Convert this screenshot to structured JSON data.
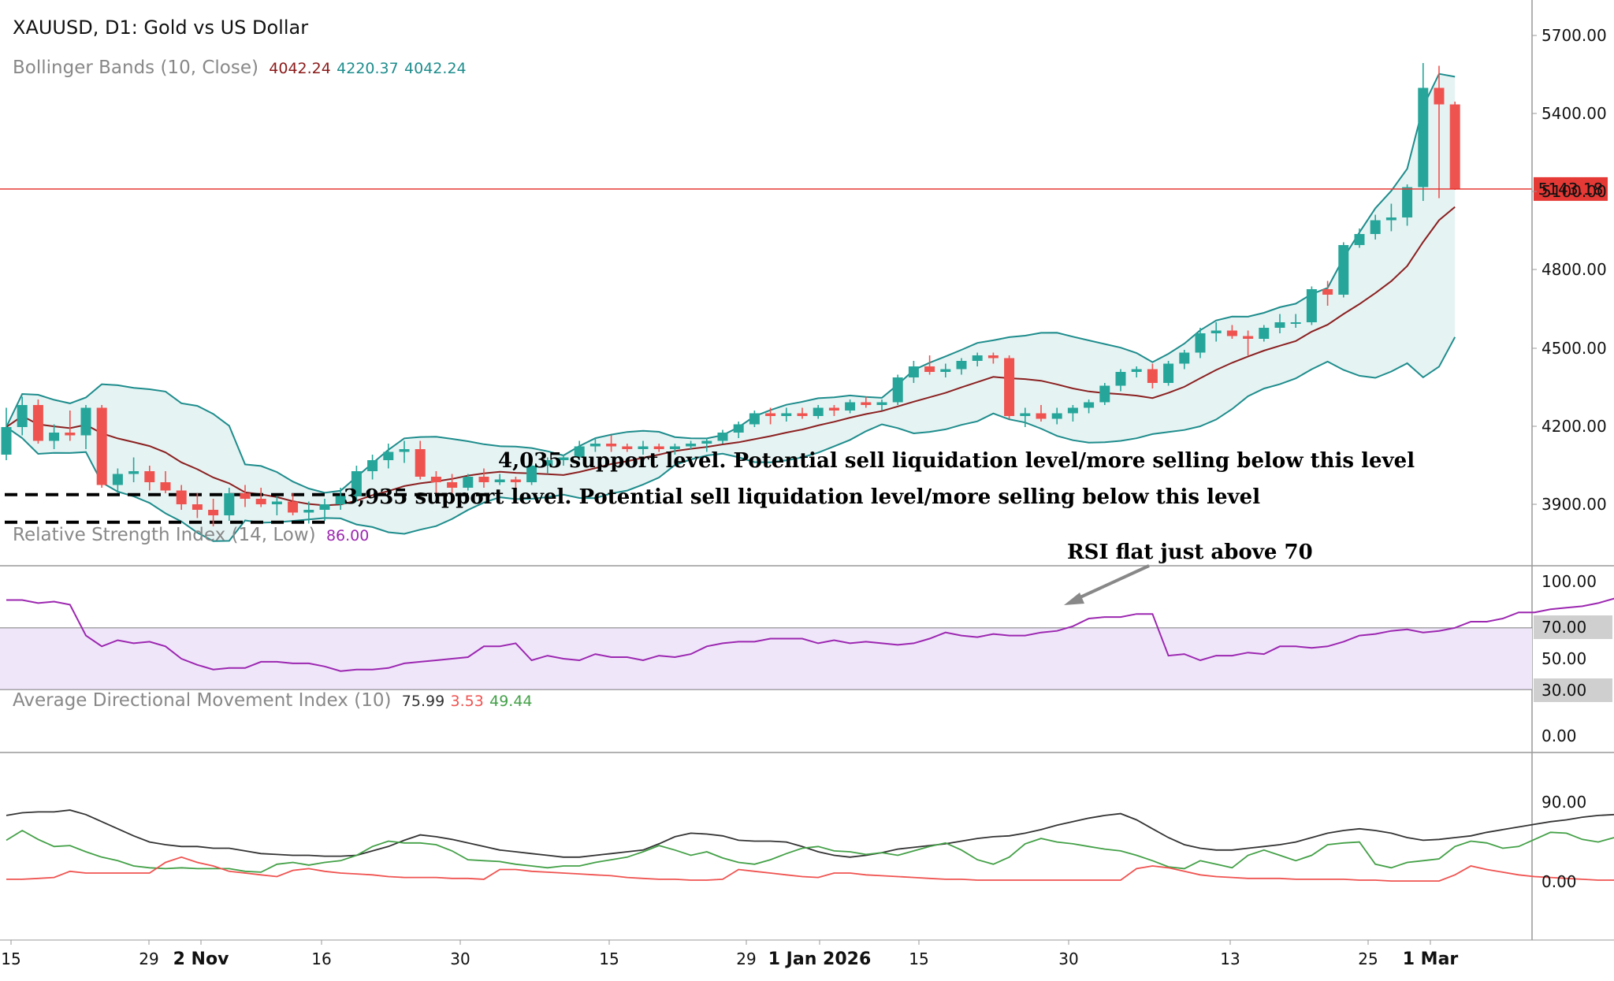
{
  "main_title": "XAUUSD, D1: Gold vs US Dollar",
  "bb": {
    "name": "Bollinger Bands (10, Close)",
    "v1": "4042.24",
    "v2": "4220.37",
    "v3": "4042.24"
  },
  "rsi": {
    "name": "Relative Strength Index (14, Low)",
    "value": "86.00"
  },
  "adx": {
    "name": "Average Directional Movement Index (10)",
    "v1": "75.99",
    "v2": "3.53",
    "v3": "49.44"
  },
  "annotations": {
    "support1": "4,035 support level. Potential sell liquidation level/more selling below this level",
    "support2": "3,935 support level. Potential sell liquidation level/more selling below this level",
    "rsi_note": "RSI flat just above 70"
  },
  "colors": {
    "up": "#26a69a",
    "down": "#ef5350",
    "bb_band": "#1e8c8c",
    "bb_fill": "#e6f3f3",
    "bb_mid": "#8b2020",
    "price_line": "#e53935",
    "rsi": "#9c27b0",
    "rsi_zone": "#efe6fa",
    "adx": "#333333",
    "di_plus": "#43a047",
    "di_minus": "#ef5350"
  },
  "chart_data": [
    {
      "type": "candlestick",
      "title": "XAUUSD, D1: Gold vs US Dollar",
      "y_ticks": [
        "5700.00",
        "5400.00",
        "5100.00",
        "4800.00",
        "4500.00",
        "4200.00",
        "3900.00"
      ],
      "ylim": [
        3840,
        5760
      ],
      "current_price": "5143.18",
      "support_levels": [
        4035,
        3935
      ],
      "x_ticks": [
        "15",
        "29",
        "2 Nov",
        "16",
        "30",
        "15",
        "29",
        "1 Jan 2026",
        "15",
        "30",
        "13",
        "25",
        "1 Mar"
      ],
      "candles": [
        [
          4180,
          4350,
          4160,
          4280
        ],
        [
          4280,
          4390,
          4250,
          4360
        ],
        [
          4360,
          4380,
          4220,
          4230
        ],
        [
          4230,
          4290,
          4200,
          4260
        ],
        [
          4260,
          4340,
          4230,
          4250
        ],
        [
          4250,
          4360,
          4200,
          4350
        ],
        [
          4350,
          4360,
          4060,
          4070
        ],
        [
          4070,
          4130,
          4040,
          4110
        ],
        [
          4110,
          4170,
          4080,
          4120
        ],
        [
          4120,
          4140,
          4050,
          4080
        ],
        [
          4080,
          4120,
          4040,
          4050
        ],
        [
          4050,
          4070,
          3980,
          4000
        ],
        [
          4000,
          4040,
          3950,
          3980
        ],
        [
          3980,
          4020,
          3920,
          3960
        ],
        [
          3960,
          4060,
          3940,
          4040
        ],
        [
          4040,
          4070,
          3990,
          4020
        ],
        [
          4020,
          4060,
          3990,
          4000
        ],
        [
          4000,
          4030,
          3960,
          4010
        ],
        [
          4010,
          4040,
          3960,
          3970
        ],
        [
          3970,
          4010,
          3930,
          3980
        ],
        [
          3980,
          4020,
          3940,
          4000
        ],
        [
          4000,
          4060,
          3980,
          4030
        ],
        [
          4030,
          4140,
          4010,
          4120
        ],
        [
          4120,
          4180,
          4090,
          4160
        ],
        [
          4160,
          4220,
          4130,
          4190
        ],
        [
          4190,
          4230,
          4150,
          4200
        ],
        [
          4200,
          4230,
          4090,
          4100
        ],
        [
          4100,
          4120,
          4040,
          4080
        ],
        [
          4080,
          4110,
          4030,
          4060
        ],
        [
          4060,
          4110,
          4050,
          4100
        ],
        [
          4100,
          4130,
          4060,
          4080
        ],
        [
          4080,
          4110,
          4070,
          4090
        ],
        [
          4090,
          4100,
          4050,
          4080
        ],
        [
          4080,
          4160,
          4070,
          4140
        ],
        [
          4140,
          4170,
          4110,
          4160
        ],
        [
          4160,
          4180,
          4140,
          4170
        ],
        [
          4170,
          4230,
          4160,
          4210
        ],
        [
          4210,
          4240,
          4190,
          4220
        ],
        [
          4220,
          4250,
          4190,
          4210
        ],
        [
          4210,
          4220,
          4190,
          4200
        ],
        [
          4200,
          4230,
          4180,
          4210
        ],
        [
          4210,
          4220,
          4190,
          4200
        ],
        [
          4200,
          4220,
          4180,
          4210
        ],
        [
          4210,
          4230,
          4200,
          4220
        ],
        [
          4220,
          4240,
          4190,
          4230
        ],
        [
          4230,
          4270,
          4220,
          4260
        ],
        [
          4260,
          4300,
          4240,
          4290
        ],
        [
          4290,
          4340,
          4280,
          4330
        ],
        [
          4330,
          4350,
          4290,
          4320
        ],
        [
          4320,
          4350,
          4300,
          4330
        ],
        [
          4330,
          4350,
          4310,
          4320
        ],
        [
          4320,
          4360,
          4310,
          4350
        ],
        [
          4350,
          4360,
          4320,
          4340
        ],
        [
          4340,
          4380,
          4330,
          4370
        ],
        [
          4370,
          4390,
          4350,
          4360
        ],
        [
          4360,
          4380,
          4340,
          4370
        ],
        [
          4370,
          4470,
          4360,
          4460
        ],
        [
          4460,
          4520,
          4440,
          4500
        ],
        [
          4500,
          4540,
          4470,
          4480
        ],
        [
          4480,
          4510,
          4460,
          4490
        ],
        [
          4490,
          4530,
          4470,
          4520
        ],
        [
          4520,
          4550,
          4500,
          4540
        ],
        [
          4540,
          4550,
          4510,
          4530
        ],
        [
          4530,
          4540,
          4310,
          4320
        ],
        [
          4320,
          4350,
          4280,
          4330
        ],
        [
          4330,
          4360,
          4300,
          4310
        ],
        [
          4310,
          4350,
          4290,
          4330
        ],
        [
          4330,
          4360,
          4300,
          4350
        ],
        [
          4350,
          4380,
          4330,
          4370
        ],
        [
          4370,
          4440,
          4360,
          4430
        ],
        [
          4430,
          4490,
          4410,
          4480
        ],
        [
          4480,
          4500,
          4460,
          4490
        ],
        [
          4490,
          4510,
          4420,
          4440
        ],
        [
          4440,
          4520,
          4430,
          4510
        ],
        [
          4510,
          4560,
          4490,
          4550
        ],
        [
          4550,
          4640,
          4530,
          4620
        ],
        [
          4620,
          4660,
          4590,
          4630
        ],
        [
          4630,
          4650,
          4600,
          4610
        ],
        [
          4610,
          4630,
          4540,
          4600
        ],
        [
          4600,
          4650,
          4590,
          4640
        ],
        [
          4640,
          4690,
          4620,
          4660
        ],
        [
          4660,
          4690,
          4640,
          4660
        ],
        [
          4660,
          4790,
          4650,
          4780
        ],
        [
          4780,
          4810,
          4720,
          4760
        ],
        [
          4760,
          4950,
          4750,
          4940
        ],
        [
          4940,
          5000,
          4930,
          4980
        ],
        [
          4980,
          5050,
          4960,
          5030
        ],
        [
          5030,
          5090,
          4990,
          5040
        ],
        [
          5040,
          5160,
          5010,
          5150
        ],
        [
          5150,
          5600,
          5100,
          5510
        ],
        [
          5510,
          5590,
          5110,
          5450
        ],
        [
          5450,
          5460,
          5140,
          5143
        ]
      ]
    },
    {
      "type": "line",
      "title": "Relative Strength Index (14, Low)",
      "y_ticks": [
        "100.00",
        "70.00",
        "50.00",
        "30.00",
        "0.00"
      ],
      "ylim": [
        0,
        100
      ],
      "bands": [
        30,
        70
      ],
      "values": [
        88,
        88,
        86,
        87,
        85,
        65,
        58,
        62,
        60,
        61,
        58,
        50,
        46,
        43,
        44,
        44,
        48,
        48,
        47,
        47,
        45,
        42,
        43,
        43,
        44,
        47,
        48,
        49,
        50,
        51,
        58,
        58,
        60,
        49,
        52,
        50,
        49,
        53,
        51,
        51,
        49,
        52,
        51,
        53,
        58,
        60,
        61,
        61,
        63,
        63,
        63,
        60,
        62,
        60,
        61,
        60,
        59,
        60,
        63,
        67,
        65,
        64,
        66,
        65,
        65,
        67,
        68,
        71,
        76,
        77,
        77,
        79,
        79,
        52,
        53,
        49,
        52,
        52,
        54,
        53,
        58,
        58,
        57,
        58,
        61,
        65,
        66,
        68,
        69,
        67,
        68,
        70,
        74,
        74,
        76,
        80,
        80,
        82,
        83,
        84,
        86,
        89,
        90,
        90,
        92,
        89,
        86,
        86
      ]
    },
    {
      "type": "line",
      "title": "Average Directional Movement Index (10)",
      "y_ticks": [
        "90.00",
        "0.00"
      ],
      "ylim": [
        -20,
        110
      ],
      "series": [
        {
          "values": [
            75,
            78,
            79,
            79,
            81,
            76,
            68,
            60,
            52,
            45,
            42,
            40,
            40,
            38,
            38,
            35,
            32,
            31,
            30,
            30,
            29,
            29,
            30,
            35,
            40,
            47,
            53,
            51,
            48,
            44,
            40,
            36,
            34,
            32,
            30,
            28,
            28,
            30,
            32,
            34,
            36,
            43,
            51,
            55,
            54,
            52,
            47,
            46,
            46,
            45,
            40,
            34,
            30,
            28,
            30,
            33,
            37,
            39,
            41,
            43,
            46,
            49,
            51,
            52,
            55,
            59,
            64,
            68,
            72,
            75,
            77,
            70,
            60,
            50,
            42,
            38,
            36,
            36,
            38,
            40,
            42,
            45,
            50,
            55,
            58,
            60,
            58,
            55,
            50,
            47,
            48,
            50,
            52,
            56,
            59,
            62,
            65,
            68,
            70,
            73,
            75,
            76,
            75,
            76,
            76
          ]
        },
        {
          "values": [
            47,
            58,
            48,
            40,
            41,
            34,
            28,
            24,
            18,
            16,
            15,
            16,
            15,
            15,
            15,
            12,
            11,
            20,
            22,
            19,
            22,
            24,
            30,
            40,
            46,
            44,
            44,
            42,
            35,
            25,
            24,
            23,
            20,
            18,
            16,
            18,
            18,
            22,
            25,
            28,
            34,
            41,
            36,
            30,
            34,
            27,
            22,
            20,
            25,
            32,
            38,
            40,
            35,
            34,
            31,
            33,
            30,
            35,
            40,
            44,
            36,
            25,
            20,
            28,
            43,
            49,
            45,
            43,
            40,
            37,
            35,
            30,
            24,
            17,
            15,
            24,
            20,
            16,
            30,
            36,
            30,
            24,
            30,
            42,
            44,
            45,
            20,
            16,
            22,
            24,
            26,
            40,
            46,
            44,
            38,
            40,
            48,
            56,
            55,
            48,
            45,
            50,
            52,
            40,
            36
          ]
        },
        {
          "values": [
            3,
            3,
            4,
            5,
            12,
            10,
            10,
            10,
            10,
            10,
            22,
            28,
            22,
            18,
            12,
            10,
            8,
            6,
            13,
            15,
            12,
            10,
            9,
            8,
            6,
            5,
            5,
            5,
            4,
            4,
            3,
            14,
            14,
            12,
            11,
            10,
            9,
            8,
            7,
            5,
            4,
            3,
            3,
            2,
            2,
            3,
            14,
            12,
            10,
            8,
            6,
            5,
            10,
            10,
            8,
            7,
            6,
            5,
            4,
            3,
            3,
            2,
            2,
            2,
            2,
            2,
            2,
            2,
            2,
            2,
            2,
            15,
            18,
            16,
            12,
            8,
            6,
            5,
            4,
            4,
            4,
            3,
            3,
            3,
            3,
            2,
            2,
            1,
            1,
            1,
            1,
            8,
            18,
            14,
            11,
            8,
            6,
            5,
            4,
            3,
            2,
            2,
            2,
            2,
            3
          ]
        }
      ]
    }
  ]
}
